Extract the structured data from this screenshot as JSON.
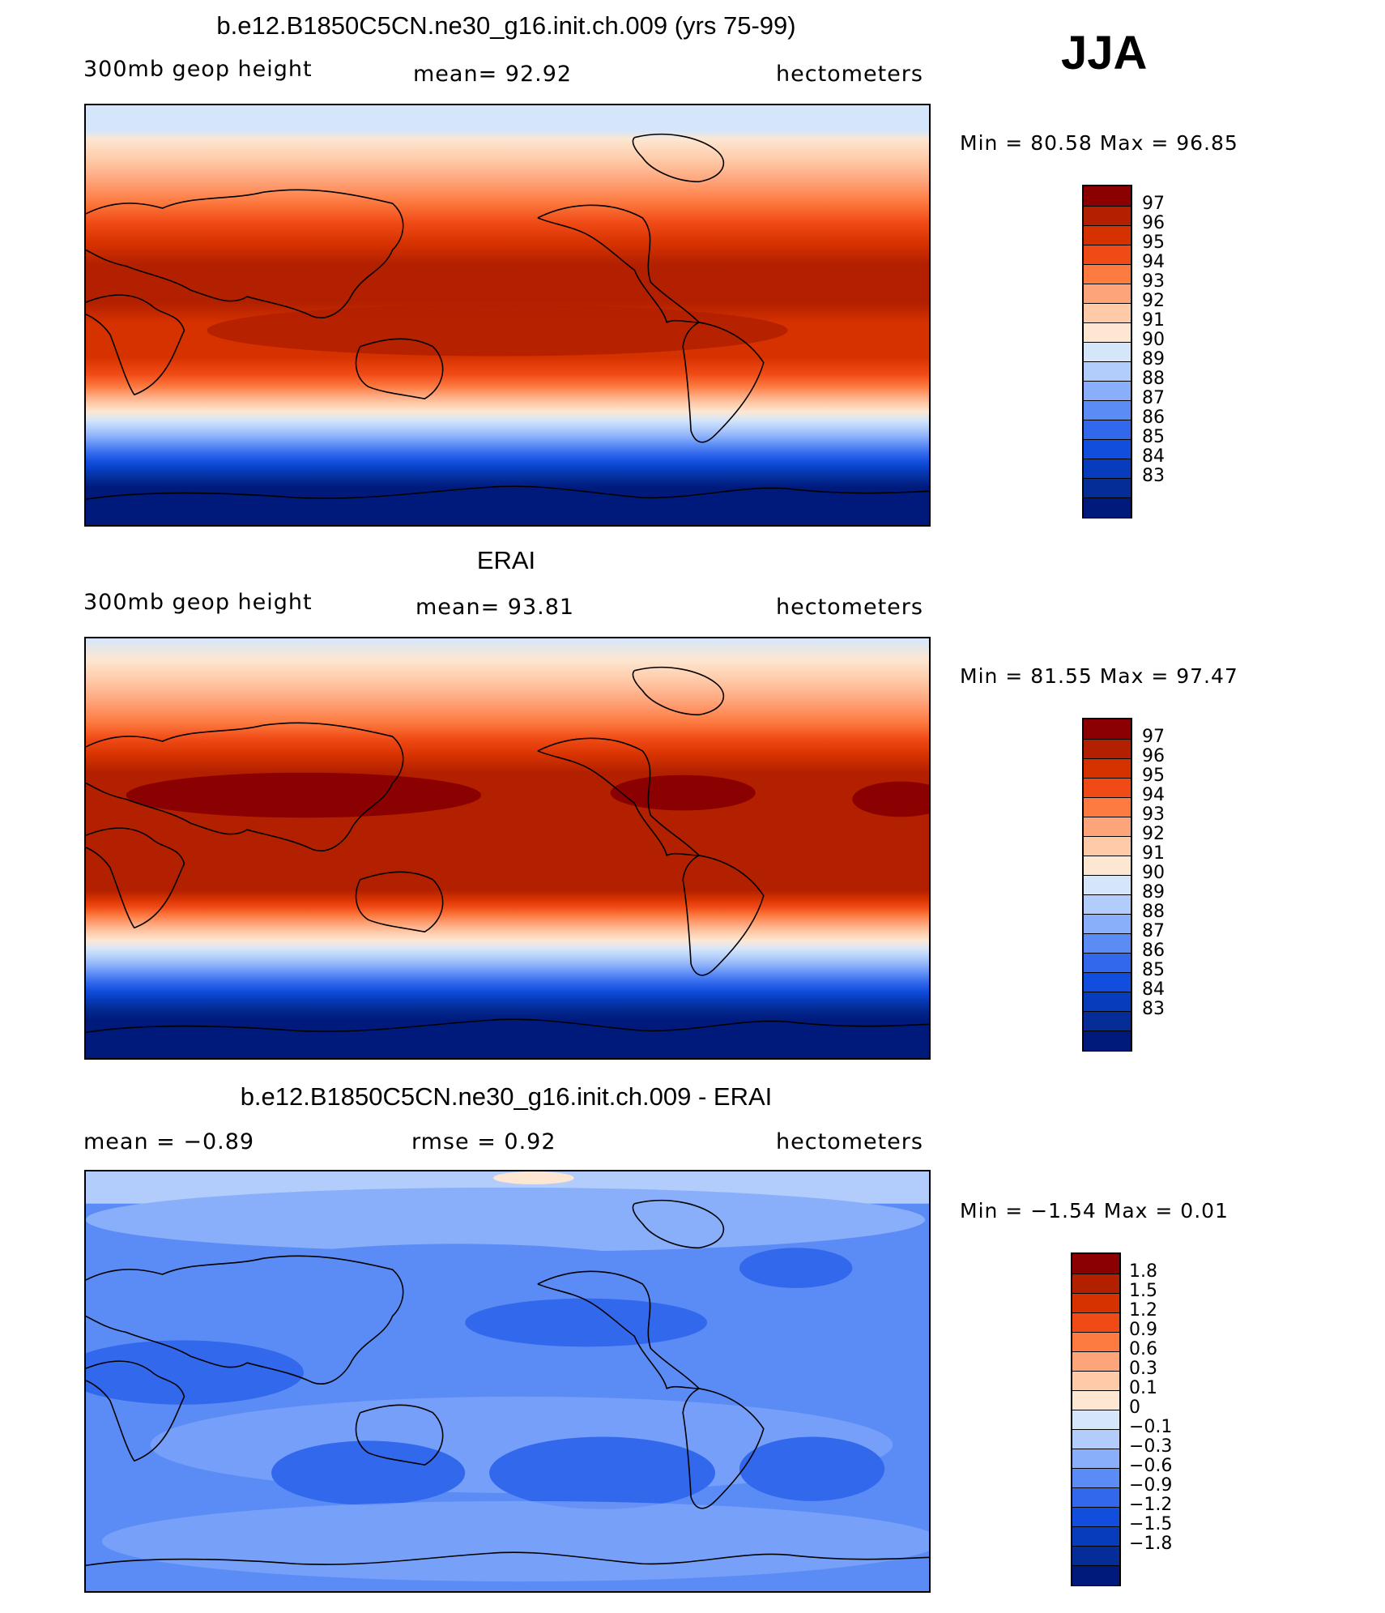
{
  "season": "JJA",
  "panels": [
    {
      "title": "b.e12.B1850C5CN.ne30_g16.init.ch.009 (yrs 75-99)",
      "left_label": "300mb  geop  height",
      "mean_label": "mean=   92.92",
      "units": "hectometers",
      "minmax": "Min  =    80.58  Max  =    96.85"
    },
    {
      "title": "ERAI",
      "left_label": "300mb  geop  height",
      "mean_label": "mean=   93.81",
      "units": "hectometers",
      "minmax": "Min  =    81.55  Max  =    97.47"
    },
    {
      "title": "b.e12.B1850C5CN.ne30_g16.init.ch.009 - ERAI",
      "left_label": "mean  =    −0.89",
      "mean_label": "rmse  =     0.92",
      "units": "hectometers",
      "minmax": "Min  =   −1.54  Max  =     0.01"
    }
  ],
  "chart_data": [
    {
      "type": "heatmap",
      "title": "b.e12.B1850C5CN.ne30_g16.init.ch.009 (yrs 75-99)",
      "variable": "300mb geop height",
      "units": "hectometers",
      "mean": 92.92,
      "min": 80.58,
      "max": 96.85,
      "colorbar_levels": [
        "97",
        "96",
        "95",
        "94",
        "93",
        "92",
        "91",
        "90",
        "89",
        "88",
        "87",
        "86",
        "85",
        "84",
        "83"
      ],
      "colormap": "blue-white-red"
    },
    {
      "type": "heatmap",
      "title": "ERAI",
      "variable": "300mb geop height",
      "units": "hectometers",
      "mean": 93.81,
      "min": 81.55,
      "max": 97.47,
      "colorbar_levels": [
        "97",
        "96",
        "95",
        "94",
        "93",
        "92",
        "91",
        "90",
        "89",
        "88",
        "87",
        "86",
        "85",
        "84",
        "83"
      ],
      "colormap": "blue-white-red"
    },
    {
      "type": "heatmap",
      "title": "b.e12.B1850C5CN.ne30_g16.init.ch.009 - ERAI",
      "units": "hectometers",
      "mean": -0.89,
      "rmse": 0.92,
      "min": -1.54,
      "max": 0.01,
      "colorbar_levels": [
        "1.8",
        "1.5",
        "1.2",
        "0.9",
        "0.6",
        "0.3",
        "0.1",
        "0",
        "−0.1",
        "−0.3",
        "−0.6",
        "−0.9",
        "−1.2",
        "−1.5",
        "−1.8"
      ],
      "colormap": "blue-white-red"
    }
  ],
  "colors": [
    "#8b0000",
    "#b22000",
    "#d63200",
    "#f04a16",
    "#fd7a40",
    "#fea47a",
    "#fecaa8",
    "#fde7d2",
    "#d5e6fb",
    "#b2cdfb",
    "#8aaffa",
    "#5b8cf6",
    "#3268ec",
    "#124ede",
    "#073cbc",
    "#042d97",
    "#001a7c"
  ]
}
